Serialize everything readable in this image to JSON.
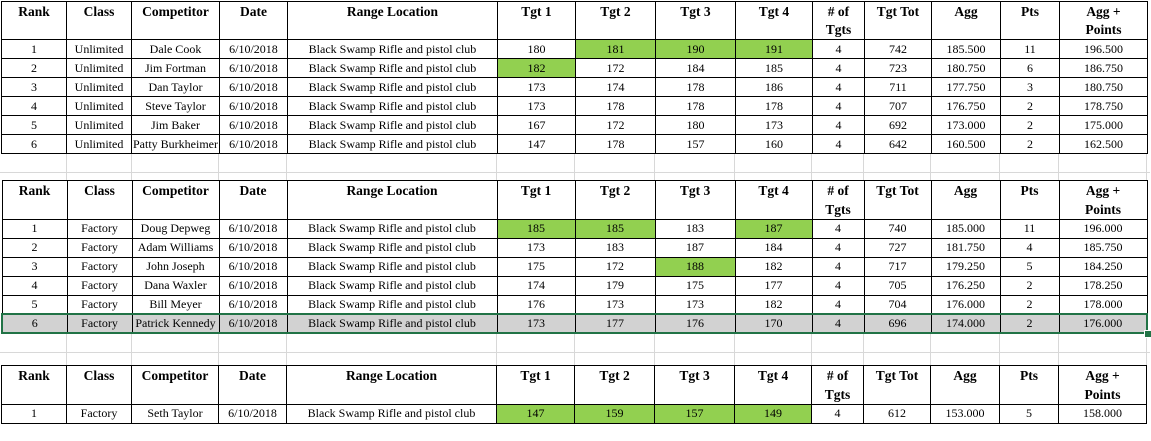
{
  "columns": [
    {
      "key": "rank",
      "label": "Rank"
    },
    {
      "key": "class",
      "label": "Class"
    },
    {
      "key": "competitor",
      "label": "Competitor"
    },
    {
      "key": "date",
      "label": "Date"
    },
    {
      "key": "range",
      "label": "Range Location"
    },
    {
      "key": "tgt1",
      "label": "Tgt 1"
    },
    {
      "key": "tgt2",
      "label": "Tgt 2"
    },
    {
      "key": "tgt3",
      "label": "Tgt 3"
    },
    {
      "key": "tgt4",
      "label": "Tgt 4"
    },
    {
      "key": "numTgts",
      "label": "# of Tgts"
    },
    {
      "key": "tgtTot",
      "label": "Tgt Tot"
    },
    {
      "key": "agg",
      "label": "Agg"
    },
    {
      "key": "pts",
      "label": "Pts"
    },
    {
      "key": "aggPoints",
      "label": "Agg +\nPoints"
    }
  ],
  "colors": {
    "highlight_green": "#92d050",
    "selection_border_green": "#217346",
    "selection_fill_gray": "#d2d2d2",
    "cell_border": "#000000",
    "faint_gridline": "#d8d8d8"
  },
  "tables": [
    {
      "name": "unlimited-class-results",
      "rows": [
        {
          "rank": "1",
          "class": "Unlimited",
          "competitor": "Dale Cook",
          "date": "6/10/2018",
          "range": "Black Swamp Rifle and pistol club",
          "tgt1": "180",
          "tgt2": "181",
          "tgt3": "190",
          "tgt4": "191",
          "numTgts": "4",
          "tgtTot": "742",
          "agg": "185.500",
          "pts": "11",
          "aggPoints": "196.500",
          "green": [
            "tgt2",
            "tgt3",
            "tgt4"
          ],
          "selected": false
        },
        {
          "rank": "2",
          "class": "Unlimited",
          "competitor": "Jim Fortman",
          "date": "6/10/2018",
          "range": "Black Swamp Rifle and pistol club",
          "tgt1": "182",
          "tgt2": "172",
          "tgt3": "184",
          "tgt4": "185",
          "numTgts": "4",
          "tgtTot": "723",
          "agg": "180.750",
          "pts": "6",
          "aggPoints": "186.750",
          "green": [
            "tgt1"
          ],
          "selected": false
        },
        {
          "rank": "3",
          "class": "Unlimited",
          "competitor": "Dan Taylor",
          "date": "6/10/2018",
          "range": "Black Swamp Rifle and pistol club",
          "tgt1": "173",
          "tgt2": "174",
          "tgt3": "178",
          "tgt4": "186",
          "numTgts": "4",
          "tgtTot": "711",
          "agg": "177.750",
          "pts": "3",
          "aggPoints": "180.750",
          "green": [],
          "selected": false
        },
        {
          "rank": "4",
          "class": "Unlimited",
          "competitor": "Steve Taylor",
          "date": "6/10/2018",
          "range": "Black Swamp Rifle and pistol club",
          "tgt1": "173",
          "tgt2": "178",
          "tgt3": "178",
          "tgt4": "178",
          "numTgts": "4",
          "tgtTot": "707",
          "agg": "176.750",
          "pts": "2",
          "aggPoints": "178.750",
          "green": [],
          "selected": false
        },
        {
          "rank": "5",
          "class": "Unlimited",
          "competitor": "Jim Baker",
          "date": "6/10/2018",
          "range": "Black Swamp Rifle and pistol club",
          "tgt1": "167",
          "tgt2": "172",
          "tgt3": "180",
          "tgt4": "173",
          "numTgts": "4",
          "tgtTot": "692",
          "agg": "173.000",
          "pts": "2",
          "aggPoints": "175.000",
          "green": [],
          "selected": false
        },
        {
          "rank": "6",
          "class": "Unlimited",
          "competitor": "Patty Burkheimer",
          "date": "6/10/2018",
          "range": "Black Swamp Rifle and pistol club",
          "tgt1": "147",
          "tgt2": "178",
          "tgt3": "157",
          "tgt4": "160",
          "numTgts": "4",
          "tgtTot": "642",
          "agg": "160.500",
          "pts": "2",
          "aggPoints": "162.500",
          "green": [],
          "selected": false
        }
      ]
    },
    {
      "name": "factory-class-results",
      "rows": [
        {
          "rank": "1",
          "class": "Factory",
          "competitor": "Doug Depweg",
          "date": "6/10/2018",
          "range": "Black Swamp Rifle and pistol club",
          "tgt1": "185",
          "tgt2": "185",
          "tgt3": "183",
          "tgt4": "187",
          "numTgts": "4",
          "tgtTot": "740",
          "agg": "185.000",
          "pts": "11",
          "aggPoints": "196.000",
          "green": [
            "tgt1",
            "tgt2",
            "tgt4"
          ],
          "selected": false
        },
        {
          "rank": "2",
          "class": "Factory",
          "competitor": "Adam Williams",
          "date": "6/10/2018",
          "range": "Black Swamp Rifle and pistol club",
          "tgt1": "173",
          "tgt2": "183",
          "tgt3": "187",
          "tgt4": "184",
          "numTgts": "4",
          "tgtTot": "727",
          "agg": "181.750",
          "pts": "4",
          "aggPoints": "185.750",
          "green": [],
          "selected": false
        },
        {
          "rank": "3",
          "class": "Factory",
          "competitor": "John Joseph",
          "date": "6/10/2018",
          "range": "Black Swamp Rifle and pistol club",
          "tgt1": "175",
          "tgt2": "172",
          "tgt3": "188",
          "tgt4": "182",
          "numTgts": "4",
          "tgtTot": "717",
          "agg": "179.250",
          "pts": "5",
          "aggPoints": "184.250",
          "green": [
            "tgt3"
          ],
          "selected": false
        },
        {
          "rank": "4",
          "class": "Factory",
          "competitor": "Dana Waxler",
          "date": "6/10/2018",
          "range": "Black Swamp Rifle and pistol club",
          "tgt1": "174",
          "tgt2": "179",
          "tgt3": "175",
          "tgt4": "177",
          "numTgts": "4",
          "tgtTot": "705",
          "agg": "176.250",
          "pts": "2",
          "aggPoints": "178.250",
          "green": [],
          "selected": false
        },
        {
          "rank": "5",
          "class": "Factory",
          "competitor": "Bill Meyer",
          "date": "6/10/2018",
          "range": "Black Swamp Rifle and pistol club",
          "tgt1": "176",
          "tgt2": "173",
          "tgt3": "173",
          "tgt4": "182",
          "numTgts": "4",
          "tgtTot": "704",
          "agg": "176.000",
          "pts": "2",
          "aggPoints": "178.000",
          "green": [],
          "selected": false
        },
        {
          "rank": "6",
          "class": "Factory",
          "competitor": "Patrick Kennedy",
          "date": "6/10/2018",
          "range": "Black Swamp Rifle and pistol club",
          "tgt1": "173",
          "tgt2": "177",
          "tgt3": "176",
          "tgt4": "170",
          "numTgts": "4",
          "tgtTot": "696",
          "agg": "174.000",
          "pts": "2",
          "aggPoints": "176.000",
          "green": [],
          "selected": true
        }
      ]
    },
    {
      "name": "factory-class-results-2",
      "rows": [
        {
          "rank": "1",
          "class": "Factory",
          "competitor": "Seth Taylor",
          "date": "6/10/2018",
          "range": "Black Swamp Rifle and pistol club",
          "tgt1": "147",
          "tgt2": "159",
          "tgt3": "157",
          "tgt4": "149",
          "numTgts": "4",
          "tgtTot": "612",
          "agg": "153.000",
          "pts": "5",
          "aggPoints": "158.000",
          "green": [
            "tgt1",
            "tgt2",
            "tgt3",
            "tgt4"
          ],
          "selected": false
        }
      ]
    }
  ]
}
